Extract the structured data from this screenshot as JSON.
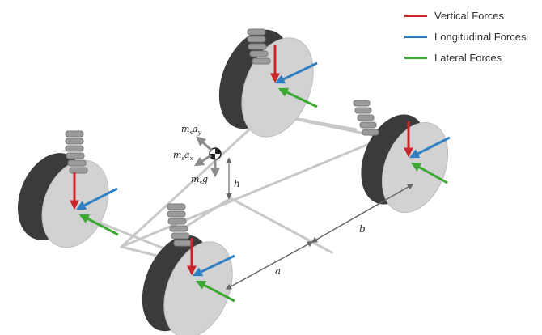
{
  "legend": [
    {
      "label": "Vertical Forces",
      "color": "#c9262c"
    },
    {
      "label": "Longitudinal Forces",
      "color": "#2f80c3"
    },
    {
      "label": "Lateral Forces",
      "color": "#3fa834"
    }
  ],
  "dimensions": {
    "a": "a",
    "b": "b",
    "h": "h"
  },
  "cg_forces": {
    "lateral": {
      "main": "m",
      "sub1": "s",
      "main2": "a",
      "sub2": "y"
    },
    "longitudinal": {
      "main": "m",
      "sub1": "s",
      "main2": "a",
      "sub2": "x"
    },
    "gravity": {
      "main": "m",
      "sub1": "s",
      "main2": "g"
    }
  },
  "colors": {
    "tire": "#3b3b3b",
    "hub": "#d2d2d2",
    "chassis": "#c8c8c8",
    "spring": "#9a9a9a",
    "cg_arrow": "#8c8c8c"
  }
}
